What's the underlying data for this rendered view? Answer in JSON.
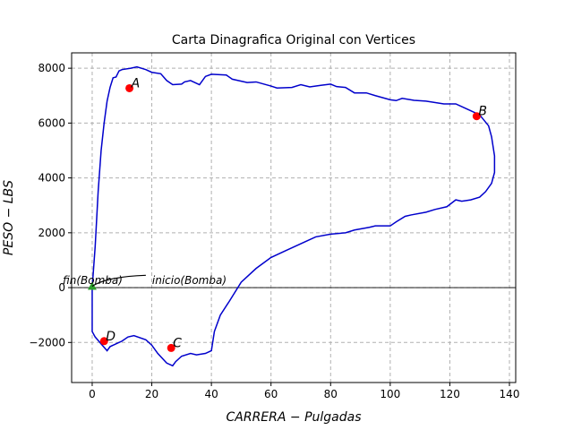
{
  "chart_data": {
    "type": "line",
    "title": "Carta Dinagrafica Original con Vertices",
    "x_label": "CARRERA − Pulgadas",
    "y_label": "PESO − LBS",
    "label_color": "#ff0000",
    "xlim": [
      -6.9,
      142.1
    ],
    "ylim": [
      -3460,
      8560
    ],
    "xticks": [
      0,
      20,
      40,
      60,
      80,
      100,
      120,
      140
    ],
    "yticks": [
      {
        "value": -2000,
        "label": "−2000"
      },
      0,
      2000,
      4000,
      6000,
      8000
    ],
    "grid": true,
    "hline": 0,
    "series": [
      {
        "color": "#0000cc",
        "x": [
          0,
          1,
          2,
          3,
          4,
          5,
          6,
          7,
          8,
          9,
          10,
          13,
          15,
          18,
          20,
          23,
          25,
          27,
          30,
          31,
          33,
          36,
          38,
          40,
          45,
          47,
          52,
          55,
          60,
          62,
          67,
          70,
          73,
          77,
          80,
          82,
          85,
          88,
          92,
          95,
          100,
          102,
          104,
          108,
          112,
          118,
          122,
          126,
          130,
          133,
          134,
          135,
          135,
          134,
          132,
          130,
          127,
          124,
          122,
          119,
          115,
          112,
          107,
          105,
          102,
          100,
          95,
          93,
          88,
          85,
          80,
          75,
          70,
          65,
          60,
          55,
          50,
          46,
          43,
          41,
          40,
          38,
          35,
          33,
          30,
          28,
          27,
          25,
          22,
          20,
          18,
          14,
          12,
          10,
          8,
          6,
          5,
          3,
          1,
          0,
          0
        ],
        "values": [
          0,
          1500,
          3500,
          5000,
          6000,
          6800,
          7300,
          7650,
          7680,
          7900,
          7950,
          8000,
          8050,
          7950,
          7850,
          7800,
          7550,
          7400,
          7420,
          7500,
          7550,
          7400,
          7700,
          7780,
          7750,
          7600,
          7480,
          7500,
          7350,
          7280,
          7300,
          7400,
          7320,
          7380,
          7420,
          7330,
          7300,
          7100,
          7100,
          7000,
          6850,
          6820,
          6900,
          6830,
          6800,
          6700,
          6700,
          6500,
          6300,
          5900,
          5500,
          4800,
          4200,
          3800,
          3500,
          3300,
          3200,
          3150,
          3200,
          2950,
          2850,
          2750,
          2650,
          2600,
          2400,
          2250,
          2250,
          2200,
          2100,
          2000,
          1950,
          1850,
          1600,
          1350,
          1100,
          700,
          200,
          -500,
          -1000,
          -1600,
          -2300,
          -2400,
          -2450,
          -2400,
          -2500,
          -2700,
          -2850,
          -2750,
          -2400,
          -2100,
          -1900,
          -1750,
          -1800,
          -1950,
          -2050,
          -2150,
          -2300,
          -2050,
          -1800,
          -1600,
          0
        ]
      }
    ],
    "points": [
      {
        "label": "A",
        "x": 12.5,
        "y": 7270,
        "color": "#ff0000"
      },
      {
        "label": "B",
        "x": 129,
        "y": 6250,
        "color": "#ff0000"
      },
      {
        "label": "C",
        "x": 26.5,
        "y": -2200,
        "color": "#ff0000"
      },
      {
        "label": "D",
        "x": 4,
        "y": -1950,
        "color": "#ff0000"
      }
    ],
    "origin_marker": {
      "x": 0,
      "y": 50,
      "color": "#2ca02c"
    },
    "annotations": [
      {
        "text": "fin(Bomba)",
        "x": -9.9,
        "y": 130
      },
      {
        "text": "inicio(Bomba)",
        "x": 20.1,
        "y": 130
      }
    ]
  }
}
